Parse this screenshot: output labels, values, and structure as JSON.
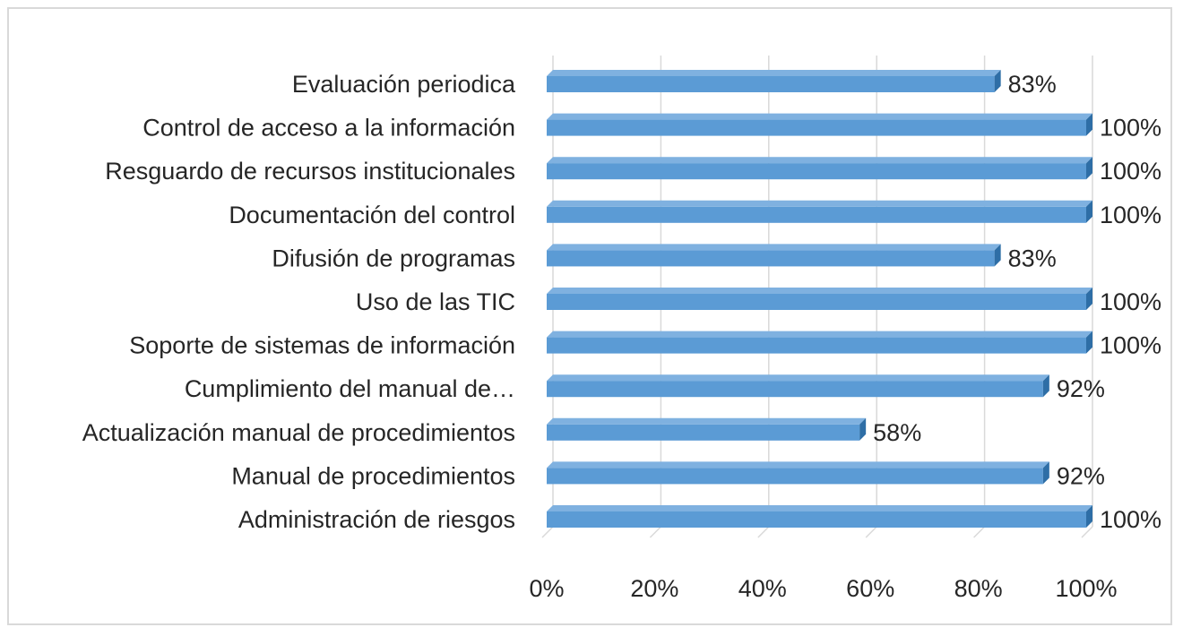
{
  "chart_data": {
    "type": "bar",
    "orientation": "horizontal",
    "style": "3d",
    "title": "",
    "xlabel": "",
    "ylabel": "",
    "xlim": [
      0,
      100
    ],
    "x_ticks": [
      "0%",
      "20%",
      "40%",
      "60%",
      "80%",
      "100%"
    ],
    "grid": true,
    "legend": "none",
    "categories": [
      "Evaluación periodica",
      "Control de acceso a la información",
      "Resguardo de recursos institucionales",
      "Documentación del control",
      "Difusión de programas",
      "Uso de las TIC",
      "Soporte de sistemas de información",
      "Cumplimiento del manual de…",
      "Actualización manual de procedimientos",
      "Manual de procedimientos",
      "Administración de riesgos"
    ],
    "values": [
      83,
      100,
      100,
      100,
      83,
      100,
      100,
      92,
      58,
      92,
      100
    ],
    "value_labels": [
      "83%",
      "100%",
      "100%",
      "100%",
      "83%",
      "100%",
      "100%",
      "92%",
      "58%",
      "92%",
      "100%"
    ],
    "colors": {
      "bar_front": "#5b9bd5",
      "bar_top": "#7fb1e0",
      "bar_side": "#2e6ea6",
      "grid": "#d9d9d9",
      "text": "#262626",
      "border": "#d9d9d9"
    }
  }
}
